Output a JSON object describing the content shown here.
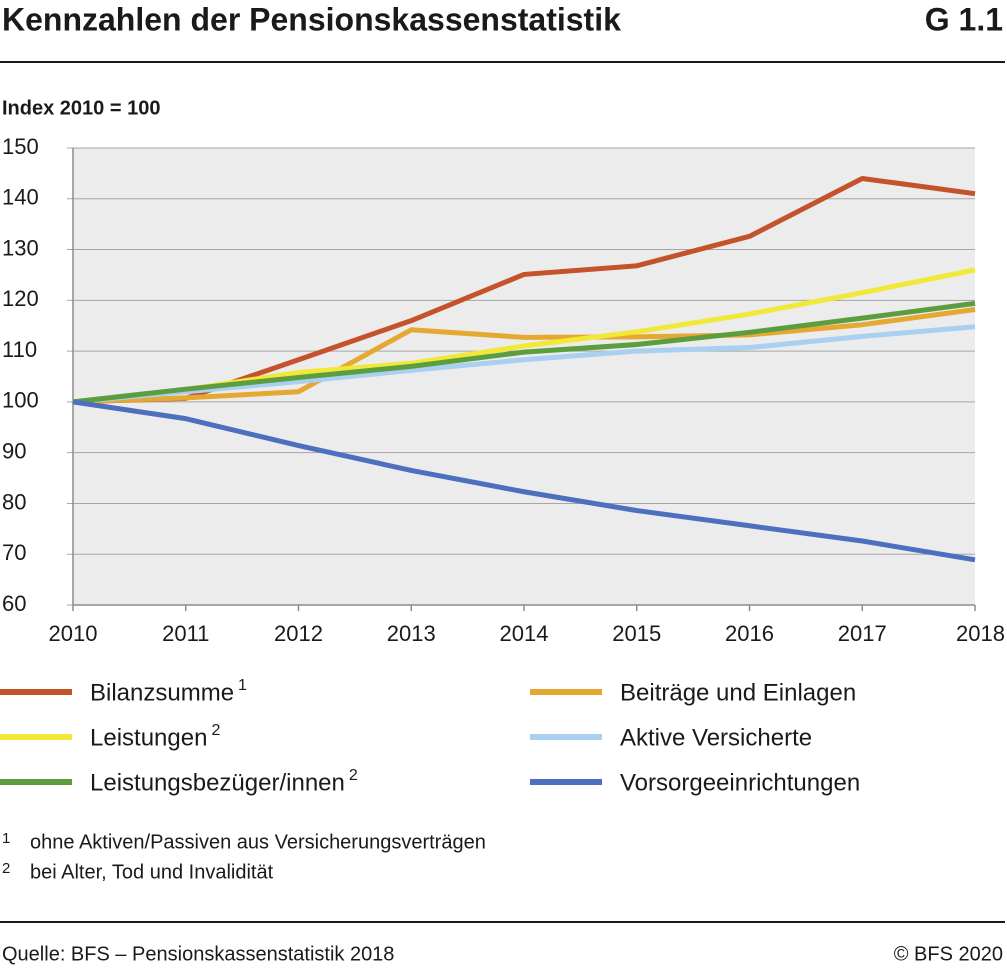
{
  "chart_data": {
    "type": "line",
    "title": "Kennzahlen der Pensionskassenstatistik",
    "chart_id": "G 1.1",
    "ylabel": "Index 2010 = 100",
    "x": [
      2010,
      2011,
      2012,
      2013,
      2014,
      2015,
      2016,
      2017,
      2018
    ],
    "xlim": [
      2010,
      2018
    ],
    "xticks": [
      2010,
      2011,
      2012,
      2013,
      2014,
      2015,
      2016,
      2017,
      2018
    ],
    "ylim": [
      60,
      150
    ],
    "yticks": [
      60,
      70,
      80,
      90,
      100,
      110,
      120,
      130,
      140,
      150
    ],
    "grid": true,
    "series": [
      {
        "name": "Bilanzsumme",
        "note": "1",
        "color": "#c4532b",
        "values": [
          100,
          100.7,
          108.3,
          116,
          125.1,
          126.8,
          132.6,
          144,
          141
        ]
      },
      {
        "name": "Beiträge und Einlagen",
        "color": "#e5a832",
        "values": [
          100,
          100.8,
          102,
          114.2,
          112.7,
          112.8,
          113.2,
          115.2,
          118.2
        ]
      },
      {
        "name": "Leistungen",
        "note": "2",
        "color": "#f2e838",
        "values": [
          100,
          102.4,
          105.8,
          107.6,
          111,
          113.8,
          117.3,
          121.5,
          126
        ]
      },
      {
        "name": "Aktive Versicherte",
        "color": "#a9d0f0",
        "values": [
          100,
          102,
          104,
          106.2,
          108.3,
          110,
          110.7,
          112.9,
          114.8
        ]
      },
      {
        "name": "Leistungsbezüger/innen",
        "note": "2",
        "color": "#5c9e3f",
        "values": [
          100,
          102.5,
          104.8,
          107,
          109.8,
          111.3,
          113.7,
          116.5,
          119.4
        ]
      },
      {
        "name": "Vorsorgeeinrichtungen",
        "color": "#4e6fbe",
        "values": [
          100,
          96.7,
          91.4,
          86.5,
          82.3,
          78.6,
          75.6,
          72.6,
          68.9
        ]
      }
    ],
    "footnotes": [
      {
        "mark": "1",
        "text": "ohne Aktiven/Passiven aus Versicherungsverträgen"
      },
      {
        "mark": "2",
        "text": "bei Alter, Tod und Invalidität"
      }
    ],
    "source": "Quelle: BFS – Pensionskassenstatistik 2018",
    "copyright": "© BFS 2020"
  }
}
